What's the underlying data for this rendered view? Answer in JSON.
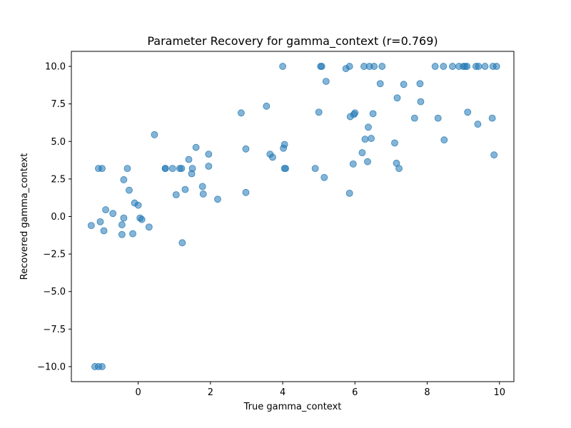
{
  "chart_data": {
    "type": "scatter",
    "title": "Parameter Recovery for gamma_context (r=0.769)",
    "xlabel": "True gamma_context",
    "ylabel": "Recovered gamma_context",
    "xlim": [
      -1.85,
      10.4
    ],
    "ylim": [
      -11.0,
      11.0
    ],
    "xticks": [
      0,
      2,
      4,
      6,
      8,
      10
    ],
    "xtick_labels": [
      "0",
      "2",
      "4",
      "6",
      "8",
      "10"
    ],
    "yticks": [
      -10.0,
      -7.5,
      -5.0,
      -2.5,
      0.0,
      2.5,
      5.0,
      7.5,
      10.0
    ],
    "ytick_labels": [
      "−10.0",
      "−7.5",
      "−5.0",
      "−2.5",
      "0.0",
      "2.5",
      "5.0",
      "7.5",
      "10.0"
    ],
    "grid": false,
    "marker_color": "#1f77b4",
    "marker_alpha": 0.55,
    "x": [
      -1.3,
      -1.2,
      -1.1,
      -1.0,
      -1.1,
      -1.0,
      -1.05,
      -0.95,
      -0.9,
      -0.7,
      -0.45,
      -0.45,
      -0.4,
      -0.4,
      -0.3,
      -0.25,
      -0.15,
      -0.1,
      0.0,
      0.05,
      0.1,
      0.3,
      0.45,
      0.75,
      0.75,
      0.95,
      1.05,
      1.15,
      1.2,
      1.22,
      1.3,
      1.4,
      1.48,
      1.5,
      1.6,
      1.78,
      1.8,
      1.95,
      1.95,
      2.2,
      2.85,
      2.98,
      2.98,
      3.55,
      3.65,
      3.72,
      4.0,
      4.02,
      4.05,
      4.05,
      4.08,
      4.9,
      5.0,
      5.05,
      5.08,
      5.15,
      5.2,
      5.75,
      5.85,
      5.85,
      5.87,
      5.95,
      5.97,
      6.0,
      6.2,
      6.25,
      6.28,
      6.35,
      6.37,
      6.4,
      6.45,
      6.5,
      6.53,
      6.7,
      6.75,
      7.1,
      7.15,
      7.17,
      7.22,
      7.35,
      7.65,
      7.8,
      7.82,
      8.22,
      8.3,
      8.45,
      8.47,
      8.7,
      8.88,
      9.0,
      9.05,
      9.1,
      9.12,
      9.35,
      9.4,
      9.42,
      9.6,
      9.8,
      9.82,
      9.85,
      9.92
    ],
    "y": [
      -0.6,
      -10.0,
      -10.0,
      -10.0,
      3.2,
      3.2,
      -0.35,
      -0.95,
      0.45,
      0.2,
      -0.55,
      -1.2,
      -0.1,
      2.45,
      3.2,
      1.75,
      -1.15,
      0.9,
      0.75,
      -0.1,
      -0.2,
      -0.7,
      5.45,
      3.2,
      3.2,
      3.2,
      1.45,
      3.2,
      3.2,
      -1.75,
      1.8,
      3.8,
      2.85,
      3.2,
      4.6,
      2.0,
      1.5,
      3.35,
      4.15,
      1.15,
      6.9,
      4.5,
      1.6,
      7.35,
      4.15,
      3.95,
      10.0,
      4.55,
      4.8,
      3.2,
      3.2,
      3.2,
      6.95,
      10.0,
      10.0,
      2.6,
      9.0,
      9.85,
      1.55,
      10.0,
      6.65,
      3.5,
      6.8,
      6.9,
      4.25,
      10.0,
      5.15,
      3.65,
      5.95,
      10.0,
      5.2,
      6.85,
      10.0,
      8.85,
      10.0,
      4.9,
      3.55,
      7.9,
      3.2,
      8.8,
      6.55,
      8.85,
      7.65,
      10.0,
      6.55,
      10.0,
      5.1,
      10.0,
      10.0,
      10.0,
      10.0,
      10.0,
      6.95,
      10.0,
      6.15,
      10.0,
      10.0,
      6.55,
      10.0,
      4.1,
      10.0
    ]
  }
}
